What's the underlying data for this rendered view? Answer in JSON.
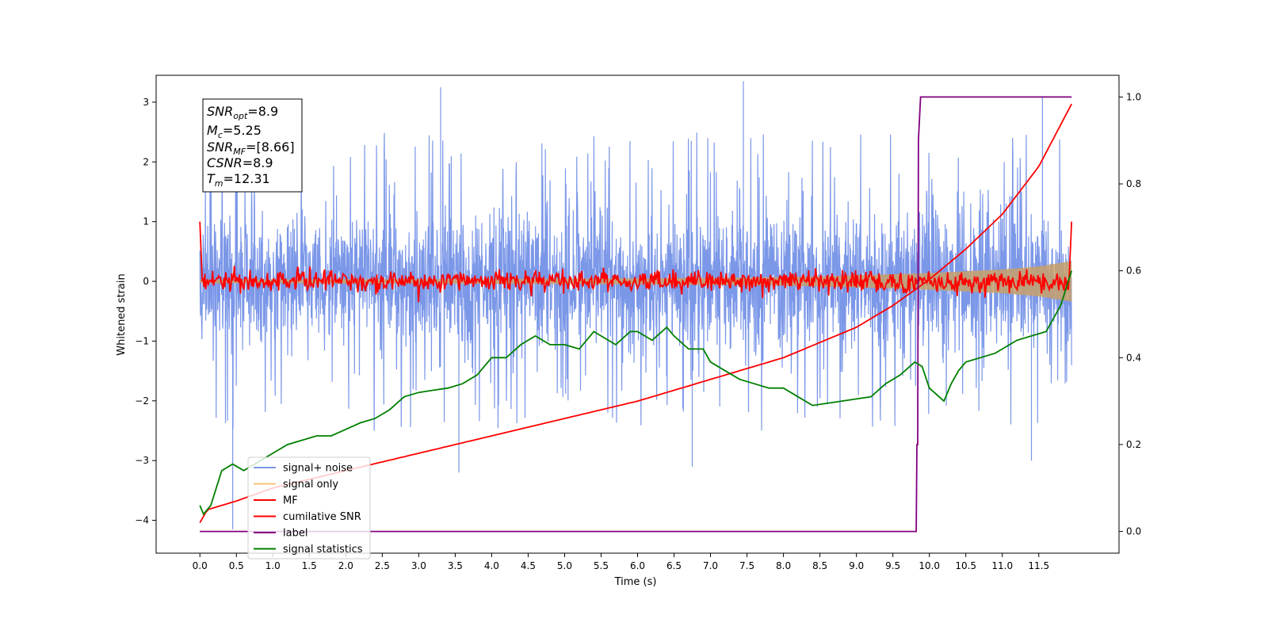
{
  "chart_data": {
    "type": "line",
    "xlabel": "Time (s)",
    "ylabel": "Whitened strain",
    "xlim": [
      -0.6,
      12.6
    ],
    "ylim": [
      -4.55,
      3.45
    ],
    "y2lim": [
      -0.05,
      1.05
    ],
    "x_ticks": [
      "0.0",
      "0.5",
      "1.0",
      "1.5",
      "2.0",
      "2.5",
      "3.0",
      "3.5",
      "4.0",
      "4.5",
      "5.0",
      "5.5",
      "6.0",
      "6.5",
      "7.0",
      "7.5",
      "8.0",
      "8.5",
      "9.0",
      "9.5",
      "10.0",
      "10.5",
      "11.0",
      "11.5"
    ],
    "y_ticks": [
      "3",
      "2",
      "1",
      "0",
      "−1",
      "−2",
      "−3",
      "−4"
    ],
    "y2_ticks": [
      "1.0",
      "0.8",
      "0.6",
      "0.4",
      "0.2",
      "0.0"
    ],
    "legend_position": "lower-left",
    "legend": [
      "signal+ noise",
      "signal only",
      "MF",
      "cumilative SNR",
      "label",
      "signal statistics"
    ],
    "annotation": {
      "snr_opt": {
        "base": "SNR",
        "sub": "opt",
        "value": "=8.9"
      },
      "mc": {
        "base": "M",
        "sub": "c",
        "value": "=5.25"
      },
      "snr_mf": {
        "base": "SNR",
        "sub": "MF",
        "value": "=[8.66]"
      },
      "csnr": {
        "base": "CSNR",
        "sub": "",
        "value": "=8.9"
      },
      "tm": {
        "base": "T",
        "sub": "m",
        "value": "=12.31"
      }
    },
    "series": [
      {
        "name": "signal+ noise",
        "axis": "left",
        "color": "#7b97e8",
        "description": "dense noisy trace, roughly between -2.2 and 2.3 with spikes to about 3.3 and -4.1",
        "envelope_low": -1.4,
        "envelope_high": 1.2,
        "spike_max": 3.35,
        "spike_min": -4.15
      },
      {
        "name": "signal only",
        "axis": "left",
        "color": "#f5c57a",
        "description": "chirp amplitude envelope growing toward the end",
        "x": [
          0.0,
          4.0,
          6.0,
          7.0,
          8.0,
          9.0,
          10.0,
          11.0,
          11.5,
          12.0
        ],
        "amplitude": [
          0.03,
          0.04,
          0.05,
          0.06,
          0.07,
          0.1,
          0.14,
          0.2,
          0.25,
          0.35
        ]
      },
      {
        "name": "MF",
        "axis": "left",
        "color": "#ff0000",
        "description": "matched filter output fluctuating around 0 within about +/-0.3, starting and ending near 1",
        "x": [
          0.0,
          0.05,
          12.0
        ],
        "y": [
          1.0,
          0.0,
          1.0
        ]
      },
      {
        "name": "cumilative SNR",
        "axis": "right",
        "color": "#ff0000",
        "x": [
          0.0,
          0.1,
          0.5,
          1.0,
          2.0,
          3.0,
          4.0,
          5.0,
          6.0,
          7.0,
          8.0,
          9.0,
          9.5,
          10.0,
          10.5,
          11.0,
          11.5,
          12.0
        ],
        "y": [
          0.02,
          0.05,
          0.07,
          0.1,
          0.14,
          0.18,
          0.22,
          0.26,
          0.3,
          0.35,
          0.4,
          0.47,
          0.52,
          0.58,
          0.65,
          0.73,
          0.84,
          1.0
        ]
      },
      {
        "name": "label",
        "axis": "right",
        "color": "#800080",
        "x": [
          0.0,
          9.82,
          9.83,
          9.84,
          9.85,
          9.88,
          11.95
        ],
        "y": [
          0.0,
          0.0,
          0.2,
          0.2,
          0.9,
          1.0,
          1.0
        ]
      },
      {
        "name": "signal statistics",
        "axis": "right",
        "color": "#008000",
        "x": [
          0.0,
          0.05,
          0.15,
          0.3,
          0.45,
          0.6,
          0.8,
          1.0,
          1.2,
          1.4,
          1.6,
          1.8,
          2.0,
          2.2,
          2.4,
          2.6,
          2.8,
          3.0,
          3.2,
          3.4,
          3.6,
          3.8,
          4.0,
          4.2,
          4.4,
          4.6,
          4.8,
          5.0,
          5.2,
          5.4,
          5.5,
          5.7,
          5.9,
          6.0,
          6.2,
          6.4,
          6.5,
          6.7,
          6.9,
          7.0,
          7.2,
          7.4,
          7.6,
          7.8,
          8.0,
          8.2,
          8.4,
          8.6,
          8.8,
          9.0,
          9.2,
          9.4,
          9.6,
          9.8,
          9.9,
          10.0,
          10.2,
          10.3,
          10.4,
          10.5,
          10.7,
          10.9,
          11.0,
          11.2,
          11.4,
          11.6,
          11.8,
          11.95
        ],
        "y": [
          0.06,
          0.04,
          0.06,
          0.14,
          0.155,
          0.14,
          0.16,
          0.18,
          0.2,
          0.21,
          0.22,
          0.22,
          0.235,
          0.25,
          0.26,
          0.28,
          0.31,
          0.32,
          0.325,
          0.33,
          0.34,
          0.36,
          0.4,
          0.4,
          0.43,
          0.45,
          0.43,
          0.43,
          0.42,
          0.46,
          0.45,
          0.43,
          0.46,
          0.46,
          0.44,
          0.47,
          0.45,
          0.42,
          0.42,
          0.39,
          0.37,
          0.35,
          0.34,
          0.33,
          0.33,
          0.31,
          0.29,
          0.295,
          0.3,
          0.305,
          0.31,
          0.34,
          0.36,
          0.39,
          0.38,
          0.33,
          0.3,
          0.34,
          0.37,
          0.39,
          0.4,
          0.41,
          0.42,
          0.44,
          0.45,
          0.46,
          0.52,
          0.6
        ]
      }
    ]
  }
}
